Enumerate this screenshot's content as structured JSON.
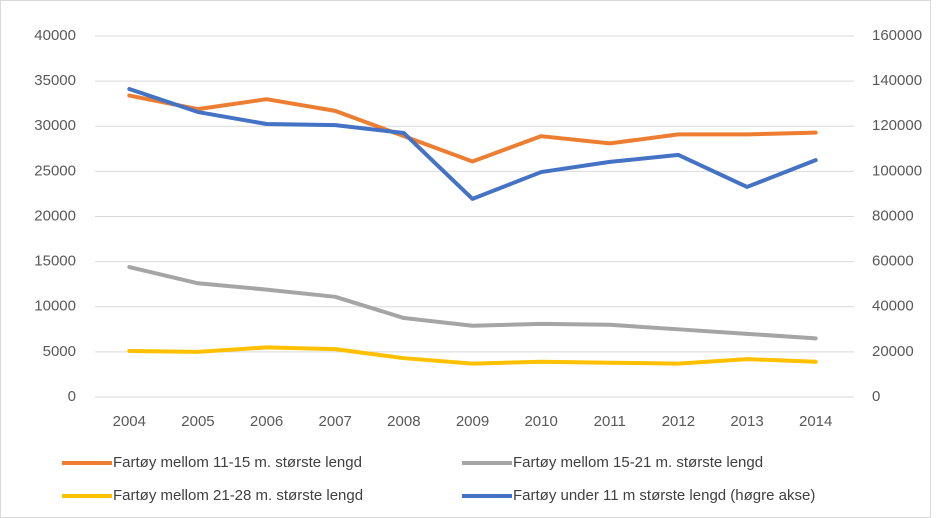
{
  "chart_data": {
    "type": "line",
    "categories": [
      "2004",
      "2005",
      "2006",
      "2007",
      "2008",
      "2009",
      "2010",
      "2011",
      "2012",
      "2013",
      "2014"
    ],
    "series": [
      {
        "name": "Fartøy mellom 11-15 m. største lengd",
        "color": "#ed7d31",
        "values": [
          33400,
          31900,
          33000,
          31700,
          28900,
          26100,
          28900,
          28100,
          29100,
          29100,
          29300
        ]
      },
      {
        "name": "Fartøy mellom 15-21 m. største lengd",
        "color": "#a5a5a5",
        "values": [
          14400,
          12600,
          11900,
          11100,
          8750,
          7900,
          8100,
          8000,
          7500,
          7000,
          6500
        ]
      },
      {
        "name": "Fartøy mellom 21-28 m. største lengd",
        "color": "#ffc000",
        "values": [
          5100,
          5000,
          5500,
          5300,
          4300,
          3700,
          3900,
          3800,
          3700,
          4200,
          3900
        ]
      },
      {
        "name": "Fartøy under 11 m største lengd (høgre akse)",
        "color": "#4472c4",
        "axis": "y2",
        "values": [
          136500,
          126300,
          121000,
          120500,
          117000,
          87800,
          99700,
          104200,
          107300,
          93100,
          105000
        ]
      }
    ],
    "ylim": [
      0,
      40000
    ],
    "yticks": [
      0,
      5000,
      10000,
      15000,
      20000,
      25000,
      30000,
      35000,
      40000
    ],
    "y2lim": [
      0,
      160000
    ],
    "y2ticks": [
      0,
      20000,
      40000,
      60000,
      80000,
      100000,
      120000,
      140000,
      160000
    ],
    "grid": true
  }
}
